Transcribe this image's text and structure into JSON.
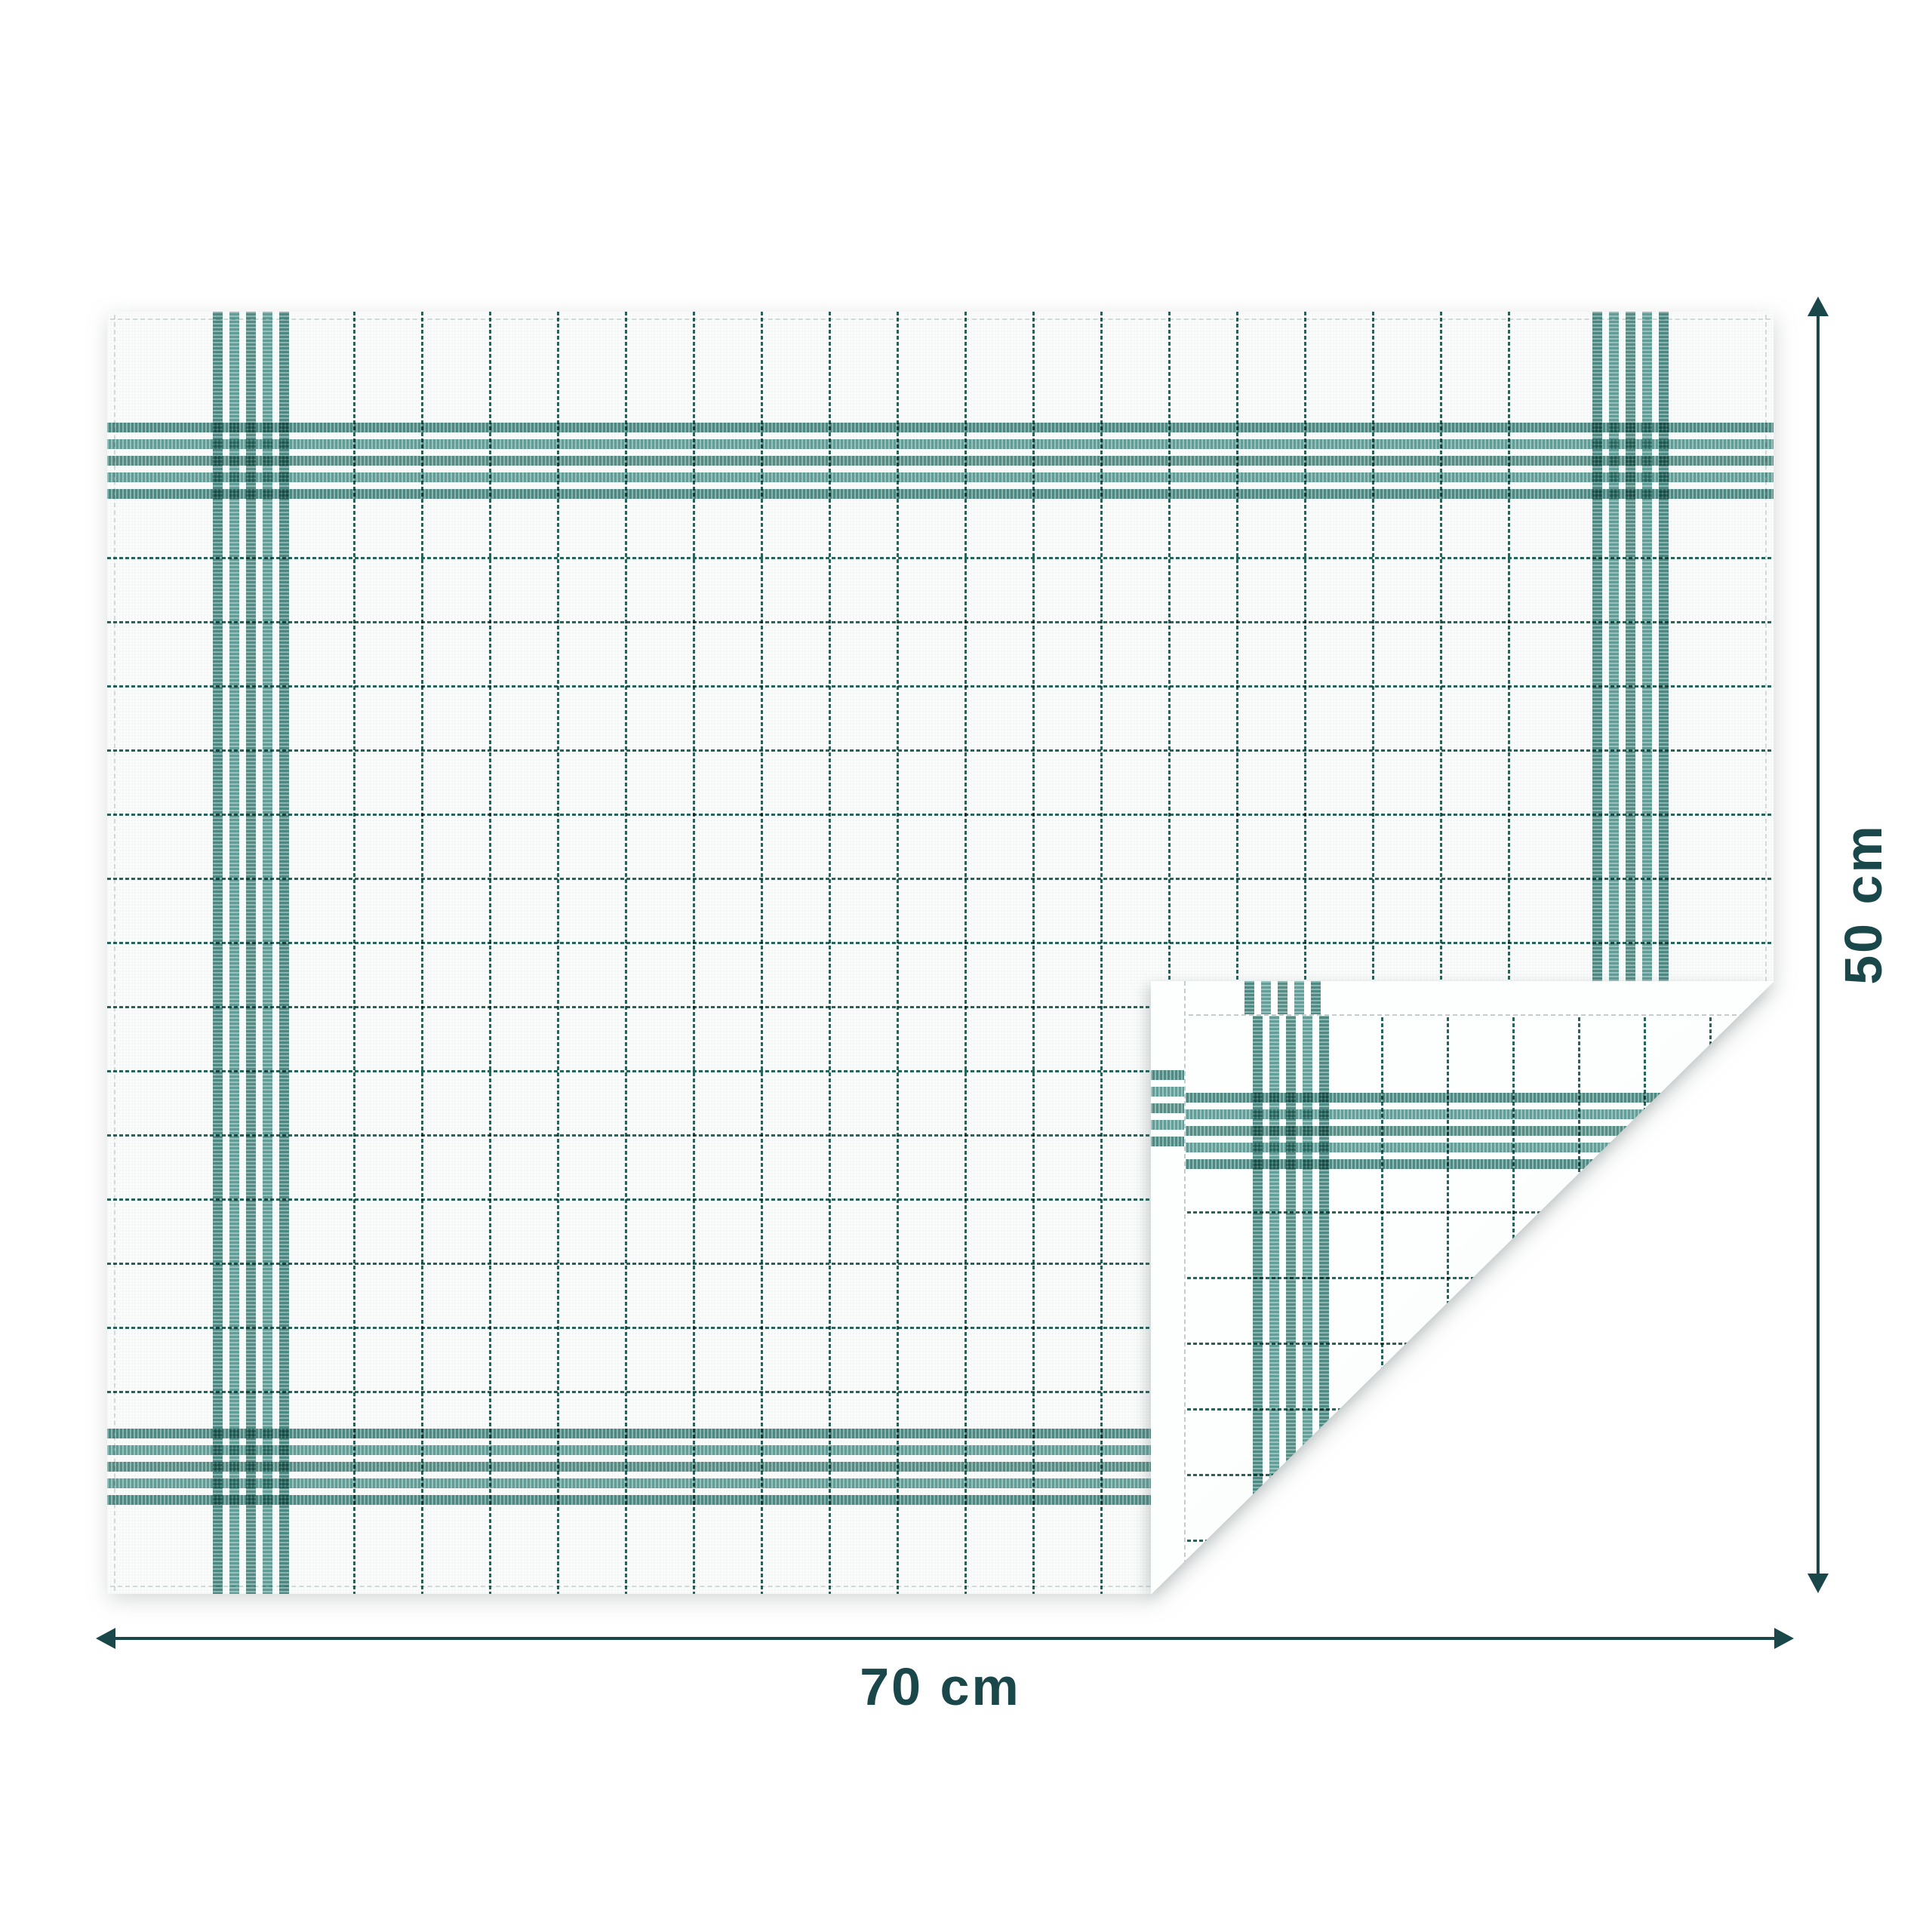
{
  "image": {
    "background": "#ffffff"
  },
  "dimensions": {
    "width_label": "70 cm",
    "height_label": "50 cm",
    "accent_color": "#1a4749"
  },
  "towel": {
    "fabric_color": "#fcfdfd",
    "stripe_width": 13,
    "stripe_gap": 9,
    "stripe_colors": [
      "#3a7e78",
      "#52968f",
      "#448279",
      "#52968f",
      "#3a7e78"
    ],
    "grid_color": "#2a635d",
    "front": {
      "bands_v": [
        140,
        1968
      ],
      "bands_h": [
        147,
        1480
      ],
      "grid_v": {
        "start": 326,
        "step": 90,
        "count": 18
      },
      "grid_h": {
        "start": 325,
        "step": 85,
        "count": 14
      }
    },
    "flap": {
      "hem_size": 44,
      "bands_v": [
        135
      ],
      "bands_h": [
        148
      ],
      "grid_v": {
        "start": 305,
        "step": 87,
        "count": 6
      },
      "grid_h": {
        "start": 305,
        "step": 87,
        "count": 6
      },
      "hem_top_band_start": 124,
      "hem_left_band_start": 118
    }
  }
}
